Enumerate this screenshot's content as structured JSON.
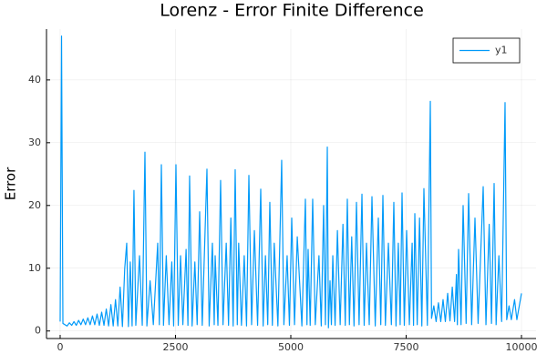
{
  "chart_data": {
    "type": "line",
    "title": "Lorenz - Error Finite Difference",
    "y_label": "Error",
    "x": [
      0,
      30,
      60,
      150,
      200,
      250,
      300,
      350,
      400,
      450,
      500,
      550,
      600,
      650,
      700,
      750,
      800,
      850,
      900,
      950,
      1000,
      1050,
      1100,
      1150,
      1200,
      1250,
      1300,
      1350,
      1400,
      1443,
      1480,
      1520,
      1560,
      1600,
      1640,
      1720,
      1780,
      1838,
      1880,
      1950,
      2020,
      2115,
      2150,
      2194,
      2240,
      2300,
      2360,
      2420,
      2460,
      2510,
      2560,
      2610,
      2660,
      2730,
      2770,
      2806,
      2860,
      2920,
      2970,
      3024,
      3080,
      3182,
      3230,
      3300,
      3340,
      3360,
      3420,
      3478,
      3530,
      3600,
      3650,
      3700,
      3750,
      3794,
      3840,
      3870,
      3930,
      3990,
      4040,
      4091,
      4150,
      4210,
      4280,
      4348,
      4400,
      4450,
      4500,
      4545,
      4600,
      4640,
      4720,
      4802,
      4850,
      4920,
      4970,
      5020,
      5080,
      5140,
      5240,
      5316,
      5350,
      5375,
      5420,
      5474,
      5530,
      5610,
      5660,
      5711,
      5750,
      5791,
      5815,
      5850,
      5880,
      5910,
      5960,
      6010,
      6070,
      6130,
      6180,
      6225,
      6270,
      6320,
      6370,
      6423,
      6480,
      6542,
      6590,
      6640,
      6700,
      6759,
      6830,
      6897,
      6950,
      6996,
      7050,
      7115,
      7180,
      7233,
      7280,
      7330,
      7370,
      7411,
      7460,
      7510,
      7570,
      7630,
      7660,
      7688,
      7740,
      7790,
      7840,
      7885,
      7960,
      8024,
      8050,
      8100,
      8150,
      8200,
      8250,
      8300,
      8350,
      8400,
      8450,
      8500,
      8550,
      8590,
      8610,
      8636,
      8690,
      8735,
      8800,
      8854,
      8920,
      8992,
      9060,
      9170,
      9230,
      9300,
      9350,
      9407,
      9450,
      9510,
      9570,
      9644,
      9680,
      9730,
      9780,
      9850,
      9900,
      10000
    ],
    "series": [
      {
        "name": "y1",
        "color": "#009af9",
        "values": [
          1.5,
          47,
          1.2,
          0.8,
          1.3,
          0.9,
          1.5,
          0.9,
          1.7,
          1.0,
          1.9,
          1.0,
          2.1,
          1.0,
          2.4,
          1.0,
          2.7,
          0.9,
          3.0,
          0.9,
          3.5,
          0.8,
          4.2,
          0.8,
          5,
          0.8,
          7,
          0.7,
          10,
          14,
          0.7,
          11,
          0.8,
          22.4,
          0.9,
          12,
          0.9,
          28.5,
          0.8,
          8,
          1.0,
          14,
          1.0,
          26.5,
          0.9,
          12,
          1.0,
          11,
          0.8,
          26.5,
          0.9,
          12,
          1.0,
          13,
          0.9,
          24.7,
          0.8,
          11,
          1.0,
          19,
          0.9,
          25.8,
          0.8,
          14,
          1.0,
          12,
          0.9,
          24,
          1.0,
          14,
          0.9,
          18,
          0.8,
          25.7,
          1.0,
          14,
          0.9,
          12,
          0.8,
          24.8,
          1.0,
          16,
          0.9,
          22.6,
          0.8,
          12,
          1.0,
          20.5,
          0.9,
          14,
          0.8,
          27.2,
          1.0,
          12,
          0.9,
          18,
          1.0,
          15,
          0.8,
          21,
          1.0,
          13,
          0.9,
          21,
          1.0,
          12,
          0.8,
          20,
          1.0,
          29.3,
          0.5,
          8,
          1.0,
          12,
          0.9,
          16,
          1.0,
          17,
          0.9,
          21,
          1.0,
          15,
          0.8,
          20.5,
          1.0,
          21.8,
          0.9,
          14,
          1.0,
          21.4,
          0.8,
          18,
          1.0,
          21.6,
          0.9,
          14,
          1.0,
          20.5,
          0.8,
          14,
          1.0,
          22,
          0.9,
          16,
          1.0,
          14,
          0.9,
          18.7,
          1.0,
          18,
          0.8,
          22.7,
          0.9,
          36.6,
          2,
          4,
          1.5,
          4.5,
          1.5,
          5,
          1.5,
          6,
          1.6,
          7,
          1.5,
          9,
          1.0,
          13,
          1.0,
          20,
          1.2,
          21.9,
          1.0,
          18,
          1.2,
          23,
          1.0,
          17,
          1.2,
          23.5,
          1.0,
          12,
          1.5,
          36.4,
          1.8,
          4,
          1.8,
          5,
          1.8,
          6
        ]
      }
    ],
    "xlim": [
      -296,
      10316
    ],
    "ylim": [
      -1.2,
      48.1
    ],
    "xticks": [
      0,
      2500,
      5000,
      7500,
      10000
    ],
    "yticks": [
      0,
      10,
      20,
      30,
      40
    ],
    "grid": true,
    "legend": "top-right"
  }
}
